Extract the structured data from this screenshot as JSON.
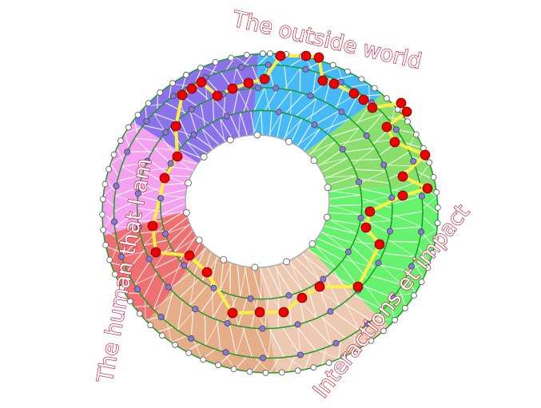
{
  "labels": {
    "top": "The outside world",
    "left": "The human that I am",
    "right": "Interactions et impact"
  },
  "colors": {
    "purple": "#8a72ea",
    "blue": "#45baf6",
    "light_green": "#8ade6c",
    "bright_green": "#66f26c",
    "peach": "#ecc9b0",
    "tan": "#e6ae88",
    "red": "#ef7070",
    "pink": "#f4a2ef",
    "ring": "#1a9a2a",
    "path": "#ffee44",
    "node_red": "#ee0000",
    "node_purple": "#8877dd"
  }
}
